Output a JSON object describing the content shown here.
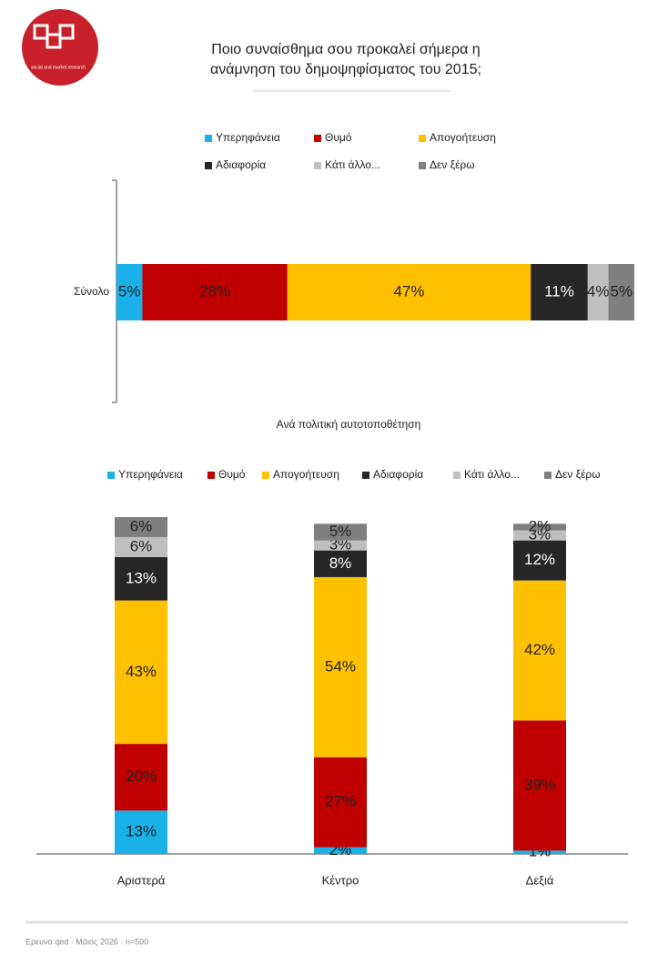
{
  "logo_text": "social and market research",
  "footer": "Ερευνα qed · Μάιος 2026 · n=500",
  "chart_data": [
    {
      "type": "bar",
      "orientation": "horizontal",
      "stacked": true,
      "title": "Ποιο συναίσθημα σου προκαλεί σήμερα η ανάμνηση του δημοψηφίσματος του 2015;",
      "categories": [
        "Σύνολο"
      ],
      "xlim": [
        0,
        100
      ],
      "series": [
        {
          "name": "Υπερηφάνεια",
          "color": "#1ab0e8",
          "values": [
            5
          ],
          "value_labels": [
            "5%"
          ]
        },
        {
          "name": "Θυμό",
          "color": "#c00000",
          "values": [
            28
          ],
          "value_labels": [
            "28%"
          ]
        },
        {
          "name": "Απογοήτευση",
          "color": "#ffc000",
          "values": [
            47
          ],
          "value_labels": [
            "47%"
          ]
        },
        {
          "name": "Αδιαφορία",
          "color": "#262626",
          "values": [
            11
          ],
          "value_labels": [
            "11%"
          ]
        },
        {
          "name": "Κάτι άλλο...",
          "color": "#bfbfbf",
          "values": [
            4
          ],
          "value_labels": [
            "4%"
          ]
        },
        {
          "name": "Δεν ξέρω",
          "color": "#7f7f7f",
          "values": [
            5
          ],
          "value_labels": [
            "5%"
          ]
        }
      ]
    },
    {
      "type": "bar",
      "orientation": "vertical",
      "stacked": true,
      "title": "Ανά πολιτική αυτοτοποθέτηση",
      "categories": [
        "Αριστερά",
        "Κέντρο",
        "Δεξιά"
      ],
      "ylim": [
        0,
        101
      ],
      "series": [
        {
          "name": "Υπερηφάνεια",
          "color": "#1ab0e8",
          "values": [
            13,
            2,
            1
          ],
          "value_labels": [
            "13%",
            "2%",
            "1%"
          ]
        },
        {
          "name": "Θυμό",
          "color": "#c00000",
          "values": [
            20,
            27,
            39
          ],
          "value_labels": [
            "20%",
            "27%",
            "39%"
          ]
        },
        {
          "name": "Απογοήτευση",
          "color": "#ffc000",
          "values": [
            43,
            54,
            42
          ],
          "value_labels": [
            "43%",
            "54%",
            "42%"
          ]
        },
        {
          "name": "Αδιαφορία",
          "color": "#262626",
          "values": [
            13,
            8,
            12
          ],
          "value_labels": [
            "13%",
            "8%",
            "12%"
          ]
        },
        {
          "name": "Κάτι άλλο...",
          "color": "#bfbfbf",
          "values": [
            6,
            3,
            3
          ],
          "value_labels": [
            "6%",
            "3%",
            "3%"
          ]
        },
        {
          "name": "Δεν ξέρω",
          "color": "#7f7f7f",
          "values": [
            6,
            5,
            2
          ],
          "value_labels": [
            "6%",
            "5%",
            "2%"
          ]
        }
      ]
    }
  ]
}
